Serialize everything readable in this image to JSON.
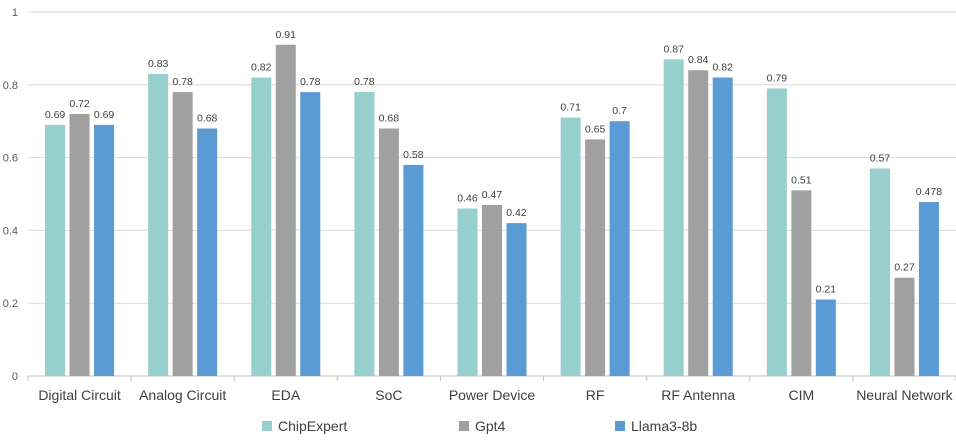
{
  "chart_data": {
    "type": "bar",
    "title": "",
    "xlabel": "",
    "ylabel": "",
    "ylim": [
      0,
      1
    ],
    "yticks": [
      0,
      0.2,
      0.4,
      0.6,
      0.8,
      1
    ],
    "ytick_labels": [
      "0",
      "0.2",
      "0.4",
      "0.6",
      "0.8",
      "1"
    ],
    "grid": true,
    "legend_position": "bottom",
    "categories": [
      "Digital Circuit",
      "Analog Circuit",
      "EDA",
      "SoC",
      "Power Device",
      "RF",
      "RF Antenna",
      "CIM",
      "Neural Network"
    ],
    "series": [
      {
        "name": "ChipExpert",
        "color": "#96cfcc",
        "values": [
          0.69,
          0.83,
          0.82,
          0.78,
          0.46,
          0.71,
          0.87,
          0.79,
          0.57
        ],
        "labels": [
          "0.69",
          "0.83",
          "0.82",
          "0.78",
          "0.46",
          "0.71",
          "0.87",
          "0.79",
          "0.57"
        ]
      },
      {
        "name": "Gpt4",
        "color": "#a0a0a0",
        "values": [
          0.72,
          0.78,
          0.91,
          0.68,
          0.47,
          0.65,
          0.84,
          0.51,
          0.27
        ],
        "labels": [
          "0.72",
          "0.78",
          "0.91",
          "0.68",
          "0.47",
          "0.65",
          "0.84",
          "0.51",
          "0.27"
        ]
      },
      {
        "name": "Llama3-8b",
        "color": "#5b9bd5",
        "values": [
          0.69,
          0.68,
          0.78,
          0.58,
          0.42,
          0.7,
          0.82,
          0.21,
          0.478
        ],
        "labels": [
          "0.69",
          "0.68",
          "0.78",
          "0.58",
          "0.42",
          "0.7",
          "0.82",
          "0.21",
          "0.478"
        ]
      }
    ]
  }
}
